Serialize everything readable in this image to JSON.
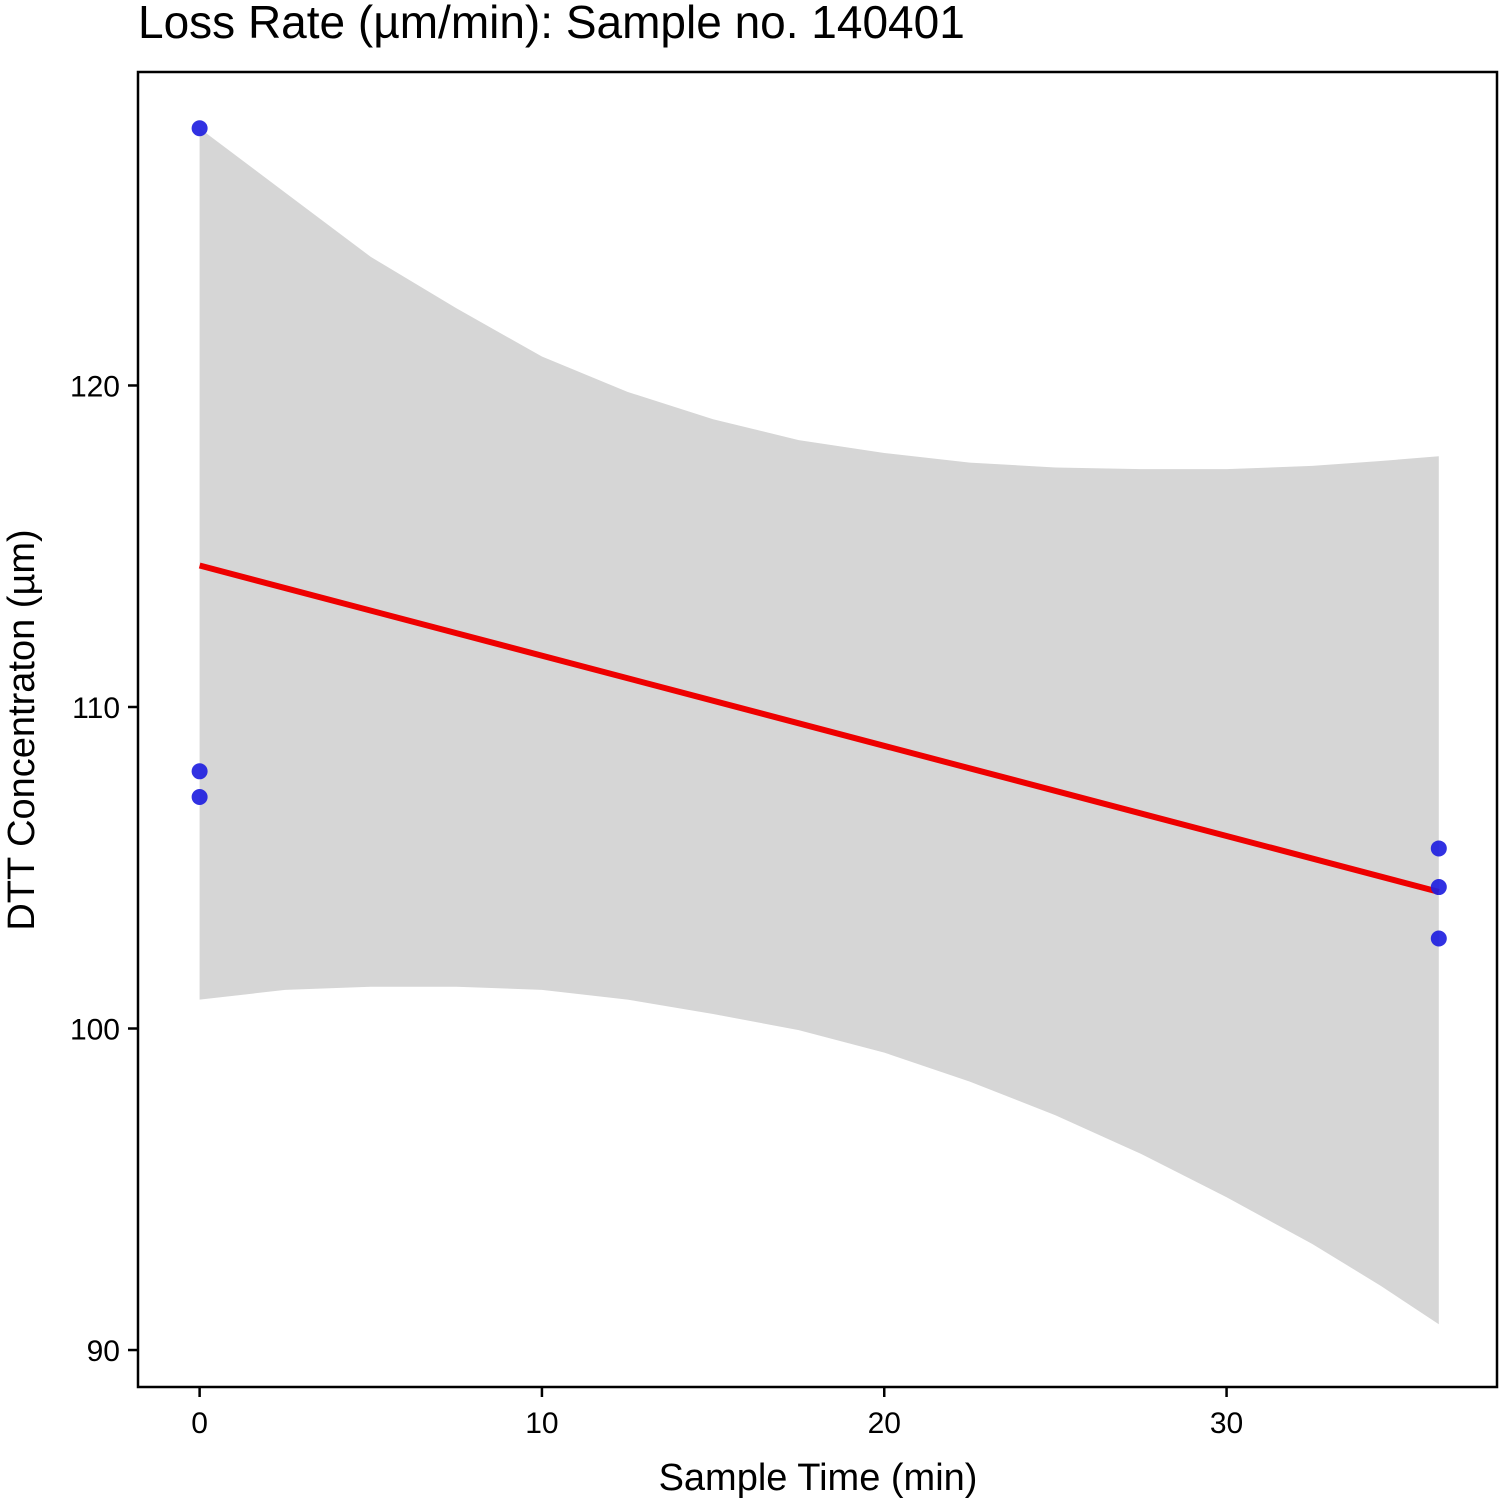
{
  "chart_data": {
    "type": "scatter",
    "title": "Loss Rate (µm/min): Sample no. 140401",
    "xlabel": "Sample Time (min)",
    "ylabel": "DTT Concentraton (µm)",
    "xlim": [
      -1.8,
      37.9
    ],
    "ylim": [
      88.85,
      129.75
    ],
    "x_ticks": [
      0,
      10,
      20,
      30
    ],
    "y_ticks": [
      90,
      100,
      110,
      120
    ],
    "grid": false,
    "legend": "none",
    "series": [
      {
        "points": [
          {
            "x": 0,
            "y": 128.0
          },
          {
            "x": 0,
            "y": 108.0
          },
          {
            "x": 0,
            "y": 107.2
          },
          {
            "x": 36.2,
            "y": 105.6
          },
          {
            "x": 36.2,
            "y": 104.4
          },
          {
            "x": 36.2,
            "y": 102.8
          }
        ]
      }
    ],
    "regression": {
      "x_start": 0,
      "y_start": 114.4,
      "x_end": 36.2,
      "y_end": 104.25
    },
    "confidence_band": {
      "x": [
        0,
        2.5,
        5,
        7.5,
        10,
        12.5,
        15,
        17.5,
        20,
        22.5,
        25,
        27.5,
        30,
        32.5,
        34.5,
        36.2
      ],
      "upper": [
        128.0,
        126.0,
        124.0,
        122.4,
        120.9,
        119.8,
        118.95,
        118.3,
        117.9,
        117.6,
        117.45,
        117.4,
        117.4,
        117.5,
        117.65,
        117.8
      ],
      "lower": [
        100.9,
        101.2,
        101.3,
        101.3,
        101.2,
        100.9,
        100.45,
        99.95,
        99.25,
        98.35,
        97.3,
        96.1,
        94.75,
        93.3,
        92.0,
        90.8
      ]
    },
    "colors": {
      "points": "#1f1fe0",
      "line": "#ee0000",
      "band": "#d6d6d6",
      "frame": "#000000"
    }
  }
}
